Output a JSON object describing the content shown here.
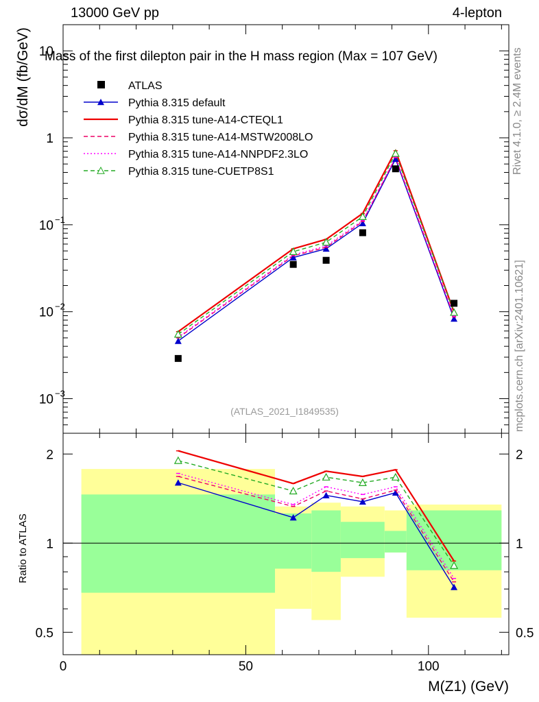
{
  "header": {
    "left_label": "13000 GeV pp",
    "right_label": "4-lepton",
    "plot_title": "Mass of the first dilepton pair in the H mass region (Max = 107 GeV)",
    "analysis_id": "(ATLAS_2021_I1849535)",
    "side_text_top": "Rivet 4.1.0, ≥ 2.4M events",
    "side_text_bottom": "mcplots.cern.ch [arXiv:2401.10621]"
  },
  "chart_data": [
    {
      "type": "line",
      "panel": "main",
      "title": "Mass of the first dilepton pair in the H mass region (Max = 107 GeV)",
      "xlabel": "M(Z1) (GeV)",
      "ylabel": "dσ/dM (fb/GeV)",
      "yscale": "log",
      "xlim": [
        0,
        122
      ],
      "ylim": [
        0.0004,
        20
      ],
      "yticks": [
        {
          "value": 0.001,
          "base": "10",
          "exp": "−3"
        },
        {
          "value": 0.01,
          "base": "10",
          "exp": "−2"
        },
        {
          "value": 0.1,
          "base": "10",
          "exp": "−1"
        },
        {
          "value": 1,
          "base": "1",
          "exp": ""
        },
        {
          "value": 10,
          "base": "10",
          "exp": ""
        }
      ],
      "x": [
        31.5,
        63,
        72,
        82,
        91,
        107
      ],
      "data": {
        "name": "ATLAS",
        "y": [
          0.0029,
          0.035,
          0.039,
          0.081,
          0.44,
          0.0125
        ]
      },
      "series": [
        {
          "name": "Pythia 8.315 default",
          "color": "#0000cc",
          "marker": "triangle-filled",
          "dash": "solid",
          "values": [
            0.0046,
            0.042,
            0.053,
            0.104,
            0.57,
            0.0083
          ]
        },
        {
          "name": "Pythia 8.315 tune-A14-CTEQL1",
          "color": "#ee0000",
          "marker": "none",
          "dash": "solid",
          "values": [
            0.0059,
            0.053,
            0.068,
            0.135,
            0.71,
            0.0099
          ]
        },
        {
          "name": "Pythia 8.315 tune-A14-MSTW2008LO",
          "color": "#ee0066",
          "marker": "none",
          "dash": "dashed",
          "values": [
            0.005,
            0.044,
            0.055,
            0.109,
            0.59,
            0.0087
          ]
        },
        {
          "name": "Pythia 8.315 tune-A14-NNPDF2.3LO",
          "color": "#ff00ff",
          "marker": "none",
          "dash": "dotted",
          "values": [
            0.0051,
            0.045,
            0.057,
            0.112,
            0.6,
            0.0089
          ]
        },
        {
          "name": "Pythia 8.315 tune-CUETP8S1",
          "color": "#22aa22",
          "marker": "triangle-open",
          "dash": "dashed",
          "values": [
            0.0055,
            0.049,
            0.063,
            0.124,
            0.66,
            0.0098
          ]
        }
      ],
      "legend": [
        "ATLAS",
        "Pythia 8.315 default",
        "Pythia 8.315 tune-A14-CTEQL1",
        "Pythia 8.315 tune-A14-MSTW2008LO",
        "Pythia 8.315 tune-A14-NNPDF2.3LO",
        "Pythia 8.315 tune-CUETP8S1"
      ]
    },
    {
      "type": "line",
      "panel": "ratio",
      "xlabel": "M(Z1) (GeV)",
      "ylabel": "Ratio to ATLAS",
      "yscale": "log",
      "xlim": [
        0,
        122
      ],
      "ylim": [
        0.42,
        2.35
      ],
      "xticks": [
        0,
        50,
        100
      ],
      "yticks": [
        0.5,
        1,
        2
      ],
      "bands": [
        {
          "x0": 5,
          "x1": 58,
          "yellow": [
            0.42,
            1.78
          ],
          "green": [
            0.68,
            1.46
          ]
        },
        {
          "x0": 58,
          "x1": 68,
          "yellow": [
            0.6,
            1.33
          ],
          "green": [
            0.82,
            1.26
          ]
        },
        {
          "x0": 68,
          "x1": 76,
          "yellow": [
            0.55,
            1.37
          ],
          "green": [
            0.8,
            1.29
          ]
        },
        {
          "x0": 76,
          "x1": 88,
          "yellow": [
            0.77,
            1.33
          ],
          "green": [
            0.89,
            1.18
          ]
        },
        {
          "x0": 88,
          "x1": 94,
          "yellow": [
            0.93,
            1.29
          ],
          "green": [
            0.93,
            1.1
          ]
        },
        {
          "x0": 94,
          "x1": 120,
          "yellow": [
            0.56,
            1.35
          ],
          "green": [
            0.81,
            1.29
          ]
        }
      ],
      "x": [
        31.5,
        63,
        72,
        82,
        91,
        107
      ],
      "series": [
        {
          "name": "Pythia 8.315 default",
          "values": [
            1.6,
            1.22,
            1.45,
            1.38,
            1.48,
            0.71
          ]
        },
        {
          "name": "Pythia 8.315 tune-A14-CTEQL1",
          "values": [
            2.05,
            1.59,
            1.75,
            1.68,
            1.77,
            0.87
          ]
        },
        {
          "name": "Pythia 8.315 tune-A14-MSTW2008LO",
          "values": [
            1.68,
            1.33,
            1.5,
            1.41,
            1.51,
            0.74
          ]
        },
        {
          "name": "Pythia 8.315 tune-A14-NNPDF2.3LO",
          "values": [
            1.72,
            1.35,
            1.55,
            1.46,
            1.55,
            0.76
          ]
        },
        {
          "name": "Pythia 8.315 tune-CUETP8S1",
          "values": [
            1.9,
            1.5,
            1.67,
            1.6,
            1.67,
            0.84
          ]
        }
      ]
    }
  ]
}
